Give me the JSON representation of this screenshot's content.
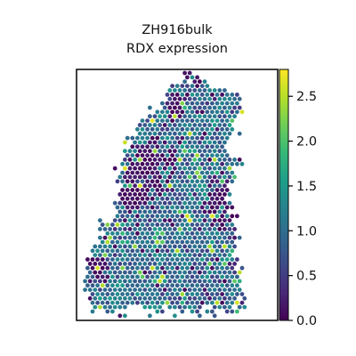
{
  "chart_data": {
    "type": "scatter",
    "subtype": "spatial-spot-map",
    "title": [
      "ZH916bulk",
      "RDX expression"
    ],
    "xlabel": "",
    "ylabel": "",
    "axes_ticks": false,
    "grid": false,
    "colormap": "viridis",
    "colorbar": {
      "range": [
        0.0,
        2.8
      ],
      "ticks": [
        0.0,
        0.5,
        1.0,
        1.5,
        2.0,
        2.5
      ],
      "tick_labels": [
        "0.0",
        "0.5",
        "1.0",
        "1.5",
        "2.0",
        "2.5"
      ],
      "placement": "right"
    },
    "tissue_outline_normalized": [
      [
        0.53,
        0.02
      ],
      [
        0.78,
        0.1
      ],
      [
        0.82,
        0.12
      ],
      [
        0.8,
        0.26
      ],
      [
        0.82,
        0.36
      ],
      [
        0.76,
        0.46
      ],
      [
        0.78,
        0.6
      ],
      [
        0.8,
        0.74
      ],
      [
        0.82,
        0.86
      ],
      [
        0.84,
        0.96
      ],
      [
        0.05,
        0.96
      ],
      [
        0.06,
        0.78
      ],
      [
        0.08,
        0.7
      ],
      [
        0.13,
        0.62
      ],
      [
        0.2,
        0.6
      ],
      [
        0.2,
        0.46
      ],
      [
        0.22,
        0.36
      ],
      [
        0.3,
        0.22
      ],
      [
        0.4,
        0.16
      ],
      [
        0.47,
        0.06
      ]
    ],
    "low_expression_regions_normalized": [
      {
        "cx": 0.36,
        "cy": 0.4,
        "r": 0.13
      },
      {
        "cx": 0.3,
        "cy": 0.5,
        "r": 0.08
      },
      {
        "cx": 0.73,
        "cy": 0.53,
        "r": 0.1
      },
      {
        "cx": 0.58,
        "cy": 0.03,
        "r": 0.05
      },
      {
        "cx": 0.5,
        "cy": 0.15,
        "r": 0.05
      },
      {
        "cx": 0.1,
        "cy": 0.8,
        "r": 0.06
      }
    ],
    "holes_normalized": [
      {
        "cx": 0.79,
        "cy": 0.31,
        "r": 0.05
      }
    ],
    "value_distribution": {
      "typical_range": [
        0.6,
        1.4
      ],
      "high_spot_probability": 0.05,
      "max": 2.7
    }
  },
  "colors": {
    "viridis": [
      "#440154",
      "#482878",
      "#3e4a89",
      "#31688e",
      "#26828e",
      "#1f9e89",
      "#35b779",
      "#6ece58",
      "#b5de2b",
      "#fde725"
    ],
    "frame": "#000000",
    "background": "#ffffff"
  }
}
